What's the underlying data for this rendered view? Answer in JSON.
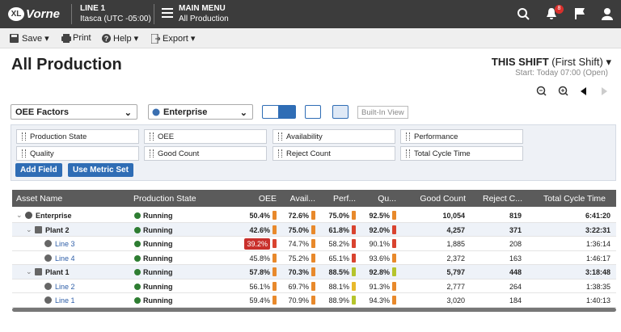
{
  "header": {
    "logo_badge": "XL",
    "logo": "Vorne",
    "line": "LINE 1",
    "timezone": "Itasca (UTC -05:00)",
    "menu": "MAIN MENU",
    "menu_sub": "All Production",
    "notification_count": "8"
  },
  "toolbar": {
    "save": "Save",
    "print": "Print",
    "help": "Help",
    "export": "Export"
  },
  "page": {
    "title": "All Production",
    "shift": "THIS SHIFT",
    "shift_name": "(First Shift)",
    "start": "Start: Today 07:00 (Open)"
  },
  "controls": {
    "metric_select": "OEE Factors",
    "scope_select": "Enterprise",
    "view": "Built-In View"
  },
  "fields": [
    "Production State",
    "OEE",
    "Availability",
    "Performance",
    "Quality",
    "Good Count",
    "Reject Count",
    "Total Cycle Time"
  ],
  "buttons": {
    "add_field": "Add Field",
    "use_metric_set": "Use Metric Set"
  },
  "table": {
    "columns": [
      "Asset Name",
      "Production State",
      "OEE",
      "Avail...",
      "Perf...",
      "Qu...",
      "Good Count",
      "Reject C...",
      "Total Cycle Time"
    ],
    "rows": [
      {
        "name": "Enterprise",
        "state": "Running",
        "oee": "50.4%",
        "availability": "72.6%",
        "performance": "75.0%",
        "quality": "92.5%",
        "good_count": "10,054",
        "reject_count": "819",
        "total_cycle_time": "6:41:20",
        "indicators": [
          "#e8892b",
          "#e8892b",
          "#e8892b",
          "#e8892b"
        ]
      },
      {
        "name": "Plant 2",
        "state": "Running",
        "oee": "42.6%",
        "availability": "75.0%",
        "performance": "61.8%",
        "quality": "92.0%",
        "good_count": "4,257",
        "reject_count": "371",
        "total_cycle_time": "3:22:31",
        "indicators": [
          "#e8892b",
          "#e8892b",
          "#d9432f",
          "#d9432f"
        ]
      },
      {
        "name": "Line 3",
        "state": "Running",
        "oee": "39.2%",
        "availability": "74.7%",
        "performance": "58.2%",
        "quality": "90.1%",
        "good_count": "1,885",
        "reject_count": "208",
        "total_cycle_time": "1:36:14",
        "indicators": [
          "#d9432f",
          "#e8892b",
          "#d9432f",
          "#d9432f"
        ]
      },
      {
        "name": "Line 4",
        "state": "Running",
        "oee": "45.8%",
        "availability": "75.2%",
        "performance": "65.1%",
        "quality": "93.6%",
        "good_count": "2,372",
        "reject_count": "163",
        "total_cycle_time": "1:46:17",
        "indicators": [
          "#e8892b",
          "#e8892b",
          "#d9432f",
          "#e8892b"
        ]
      },
      {
        "name": "Plant 1",
        "state": "Running",
        "oee": "57.8%",
        "availability": "70.3%",
        "performance": "88.5%",
        "quality": "92.8%",
        "good_count": "5,797",
        "reject_count": "448",
        "total_cycle_time": "3:18:48",
        "indicators": [
          "#e8892b",
          "#e8892b",
          "#b5c42b",
          "#b5c42b"
        ]
      },
      {
        "name": "Line 2",
        "state": "Running",
        "oee": "56.1%",
        "availability": "69.7%",
        "performance": "88.1%",
        "quality": "91.3%",
        "good_count": "2,777",
        "reject_count": "264",
        "total_cycle_time": "1:38:35",
        "indicators": [
          "#e8892b",
          "#e8892b",
          "#e8b92b",
          "#e8892b"
        ]
      },
      {
        "name": "Line 1",
        "state": "Running",
        "oee": "59.4%",
        "availability": "70.9%",
        "performance": "88.9%",
        "quality": "94.3%",
        "good_count": "3,020",
        "reject_count": "184",
        "total_cycle_time": "1:40:13",
        "indicators": [
          "#e8892b",
          "#e8892b",
          "#b5c42b",
          "#e8892b"
        ]
      }
    ]
  }
}
